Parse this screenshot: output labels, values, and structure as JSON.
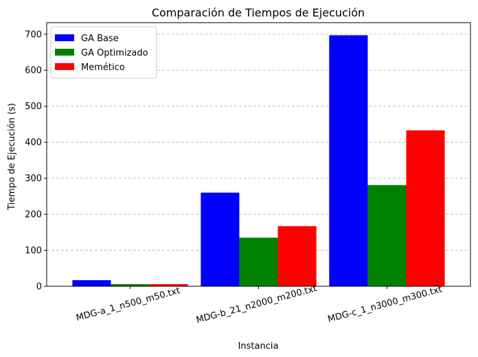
{
  "chart_data": {
    "type": "bar",
    "title": "Comparación de Tiempos de Ejecución",
    "xlabel": "Instancia",
    "ylabel": "Tiempo de Ejecución (s)",
    "categories": [
      "MDG-a_1_n500_m50.txt",
      "MDG-b_21_n2000_m200.txt",
      "MDG-c_1_n3000_m300.txt"
    ],
    "series": [
      {
        "name": "GA Base",
        "color": "#0000ff",
        "values": [
          17,
          260,
          697
        ]
      },
      {
        "name": "GA Optimizado",
        "color": "#008000",
        "values": [
          6,
          135,
          281
        ]
      },
      {
        "name": "Memético",
        "color": "#ff0000",
        "values": [
          6,
          167,
          433
        ]
      }
    ],
    "ylim": [
      0,
      732
    ],
    "yticks": [
      0,
      100,
      200,
      300,
      400,
      500,
      600,
      700
    ],
    "grid": "y-dashed",
    "legend_position": "top-left"
  }
}
